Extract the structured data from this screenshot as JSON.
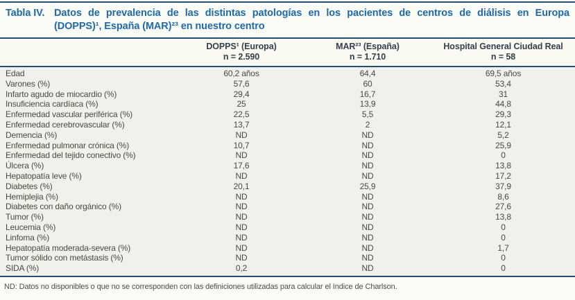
{
  "title": {
    "label": "Tabla IV.",
    "line1": "Datos de prevalencia de las distintas patologías en los pacientes de centros de diálisis en Europa",
    "line2": "(DOPPS)¹, España (MAR)²³ en nuestro centro"
  },
  "table": {
    "columns": [
      {
        "name": "DOPPS¹ (Europa)",
        "n": "n = 2.590"
      },
      {
        "name": "MAR²³ (España)",
        "n": "n = 1.710"
      },
      {
        "name": "Hospital General Ciudad Real",
        "n": "n = 58"
      }
    ],
    "rows": [
      {
        "label": "Edad",
        "values": [
          "60,2 años",
          "64,4",
          "69,5 años"
        ]
      },
      {
        "label": "Varones (%)",
        "values": [
          "57,6",
          "60",
          "53,4"
        ]
      },
      {
        "label": "Infarto agudo de miocardio (%)",
        "values": [
          "29,4",
          "16,7",
          "31"
        ]
      },
      {
        "label": "Insuficiencia cardíaca (%)",
        "values": [
          "25",
          "13,9",
          "44,8"
        ]
      },
      {
        "label": "Enfermedad vascular periférica (%)",
        "values": [
          "22,5",
          "5,5",
          "29,3"
        ]
      },
      {
        "label": "Enfermedad cerebrovascular (%)",
        "values": [
          "13,7",
          "2",
          "12,1"
        ]
      },
      {
        "label": "Demencia (%)",
        "values": [
          "ND",
          "ND",
          "5,2"
        ]
      },
      {
        "label": "Enfermedad pulmonar crónica (%)",
        "values": [
          "10,7",
          "ND",
          "25,9"
        ]
      },
      {
        "label": "Enfermedad del tejido conectivo (%)",
        "values": [
          "ND",
          "ND",
          "0"
        ]
      },
      {
        "label": "Úlcera (%)",
        "values": [
          "17,6",
          "ND",
          "13,8"
        ]
      },
      {
        "label": "Hepatopatía leve (%)",
        "values": [
          "ND",
          "ND",
          "17,2"
        ]
      },
      {
        "label": "Diabetes (%)",
        "values": [
          "20,1",
          "25,9",
          "37,9"
        ]
      },
      {
        "label": "Hemiplejia (%)",
        "values": [
          "ND",
          "ND",
          "8,6"
        ]
      },
      {
        "label": "Diabetes con daño orgánico (%)",
        "values": [
          "ND",
          "ND",
          "27,6"
        ]
      },
      {
        "label": "Tumor (%)",
        "values": [
          "ND",
          "ND",
          "13,8"
        ]
      },
      {
        "label": "Leucemia (%)",
        "values": [
          "ND",
          "ND",
          "0"
        ]
      },
      {
        "label": "Linfoma (%)",
        "values": [
          "ND",
          "ND",
          "0"
        ]
      },
      {
        "label": "Hepatopatía moderada-severa (%)",
        "values": [
          "ND",
          "ND",
          "1,7"
        ]
      },
      {
        "label": "Tumor sólido con metástasis (%)",
        "values": [
          "ND",
          "ND",
          "0"
        ]
      },
      {
        "label": "SIDA (%)",
        "values": [
          "0,2",
          "ND",
          "0"
        ]
      }
    ]
  },
  "footnote": "ND: Datos no disponibles o que no se corresponden con las definiciones utilizadas para calcular el Indice de Charlson.",
  "colors": {
    "title_blue": "#1c6aae",
    "rule_navy": "#1f4e7a",
    "body_background": "#f0f1ea"
  }
}
